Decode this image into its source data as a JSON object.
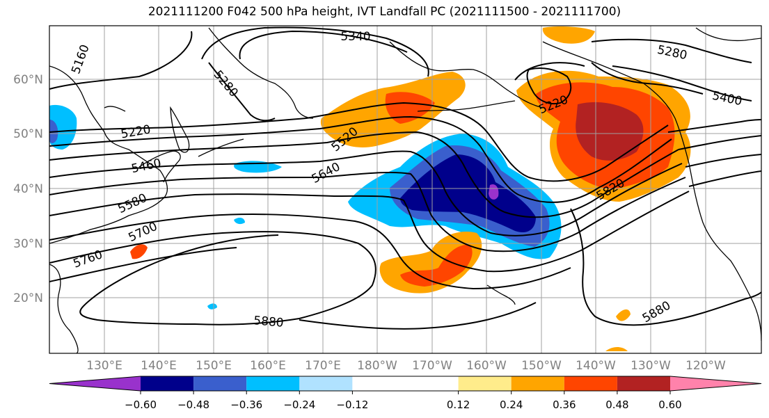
{
  "title": "2021111200 F042 500 hPa height, IVT Landfall PC (2021111500 - 2021111700)",
  "map": {
    "lat_ticks": [
      "60°N",
      "50°N",
      "40°N",
      "30°N",
      "20°N"
    ],
    "lon_ticks": [
      "130°E",
      "140°E",
      "150°E",
      "160°E",
      "170°E",
      "180°W",
      "170°W",
      "160°W",
      "150°W",
      "140°W",
      "130°W",
      "120°W"
    ],
    "contour_labels": [
      "5340",
      "5280",
      "5160",
      "5280",
      "5220",
      "5400",
      "5220",
      "5520",
      "5460",
      "5640",
      "5580",
      "5700",
      "5760",
      "5820",
      "5880",
      "5880"
    ]
  },
  "colorbar": {
    "tick_labels": [
      "−0.60",
      "−0.48",
      "−0.36",
      "−0.24",
      "−0.12",
      "0.12",
      "0.24",
      "0.36",
      "0.48",
      "0.60"
    ],
    "colors": [
      "#9932cc",
      "#00008b",
      "#3a5fcd",
      "#00bfff",
      "#b0e2ff",
      "#ffffff",
      "#ffec8b",
      "#ffa500",
      "#ff4500",
      "#b22222",
      "#ff82ab"
    ],
    "bounds": [
      -0.6,
      -0.48,
      -0.36,
      -0.24,
      -0.12,
      0.12,
      0.24,
      0.36,
      0.48,
      0.6
    ]
  }
}
